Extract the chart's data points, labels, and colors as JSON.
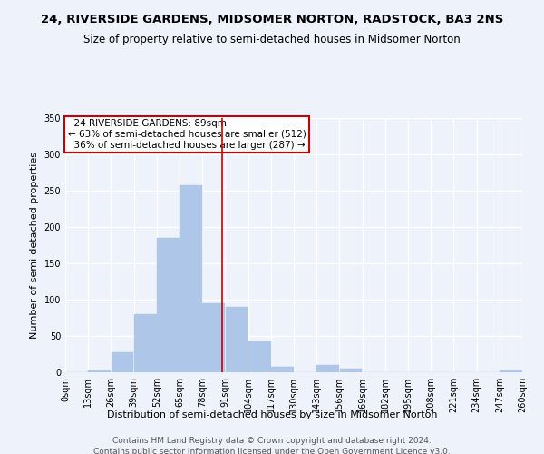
{
  "title": "24, RIVERSIDE GARDENS, MIDSOMER NORTON, RADSTOCK, BA3 2NS",
  "subtitle": "Size of property relative to semi-detached houses in Midsomer Norton",
  "xlabel": "Distribution of semi-detached houses by size in Midsomer Norton",
  "ylabel": "Number of semi-detached properties",
  "footer1": "Contains HM Land Registry data © Crown copyright and database right 2024.",
  "footer2": "Contains public sector information licensed under the Open Government Licence v3.0.",
  "property_label": "24 RIVERSIDE GARDENS: 89sqm",
  "pct_smaller": 63,
  "count_smaller": 512,
  "pct_larger": 36,
  "count_larger": 287,
  "bin_edges": [
    0,
    13,
    26,
    39,
    52,
    65,
    78,
    91,
    104,
    117,
    130,
    143,
    156,
    169,
    182,
    195,
    208,
    221,
    234,
    247,
    260
  ],
  "bin_labels": [
    "0sqm",
    "13sqm",
    "26sqm",
    "39sqm",
    "52sqm",
    "65sqm",
    "78sqm",
    "91sqm",
    "104sqm",
    "117sqm",
    "130sqm",
    "143sqm",
    "156sqm",
    "169sqm",
    "182sqm",
    "195sqm",
    "208sqm",
    "221sqm",
    "234sqm",
    "247sqm",
    "260sqm"
  ],
  "bar_heights": [
    0,
    2,
    28,
    80,
    185,
    258,
    95,
    90,
    42,
    8,
    0,
    10,
    5,
    0,
    0,
    0,
    0,
    0,
    0,
    2
  ],
  "bar_color": "#aec6e8",
  "bar_edge_color": "#aec6e8",
  "vline_color": "#cc0000",
  "vline_x": 89,
  "box_color": "#cc0000",
  "ylim": [
    0,
    350
  ],
  "yticks": [
    0,
    50,
    100,
    150,
    200,
    250,
    300,
    350
  ],
  "background_color": "#eef2fb",
  "grid_color": "#ffffff",
  "title_fontsize": 9.5,
  "subtitle_fontsize": 8.5,
  "axis_label_fontsize": 8,
  "tick_fontsize": 7,
  "footer_fontsize": 6.5,
  "annotation_fontsize": 7.5
}
